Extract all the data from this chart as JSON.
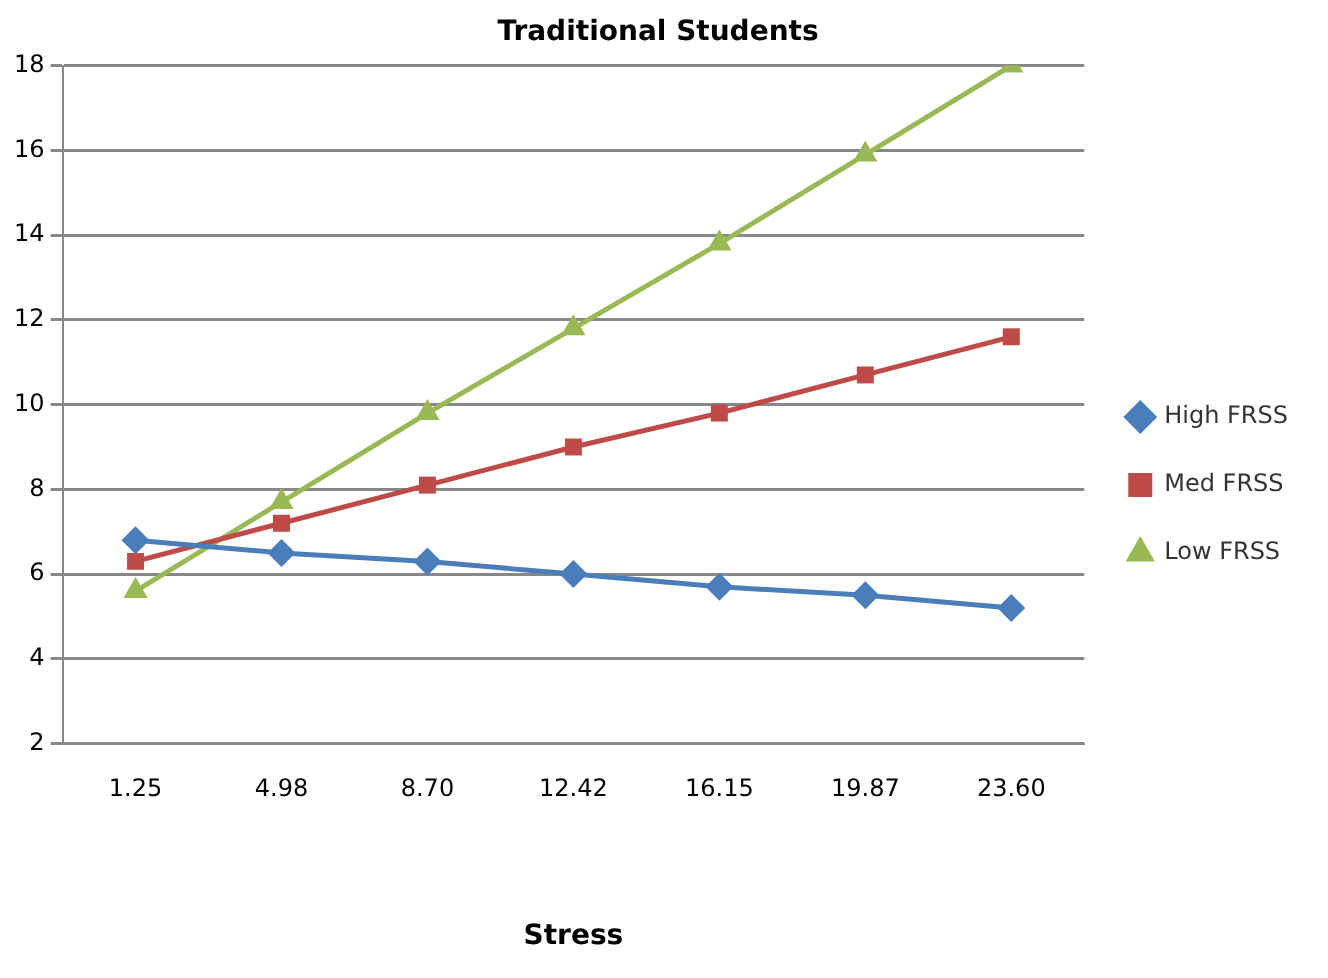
{
  "chart_data": {
    "type": "line",
    "title": "Traditional Students",
    "xlabel": "Stress",
    "categories": [
      "1.25",
      "4.98",
      "8.70",
      "12.42",
      "16.15",
      "19.87",
      "23.60"
    ],
    "series": [
      {
        "name": "High FRSS",
        "color": "#4a7ebb",
        "marker": "diamond",
        "values": [
          6.8,
          6.5,
          6.3,
          6.0,
          5.7,
          5.5,
          5.2
        ]
      },
      {
        "name": "Med FRSS",
        "color": "#be4b48",
        "marker": "square",
        "values": [
          6.3,
          7.2,
          8.1,
          9.0,
          9.8,
          10.7,
          11.6
        ]
      },
      {
        "name": "Low FRSS",
        "color": "#98b954",
        "marker": "triangle",
        "values": [
          5.6,
          7.7,
          9.8,
          11.8,
          13.8,
          15.9,
          18.0
        ]
      }
    ],
    "ylim": [
      2,
      18
    ],
    "yticks": [
      2,
      4,
      6,
      8,
      10,
      12,
      14,
      16,
      18
    ],
    "grid": "y",
    "legend": "right"
  }
}
